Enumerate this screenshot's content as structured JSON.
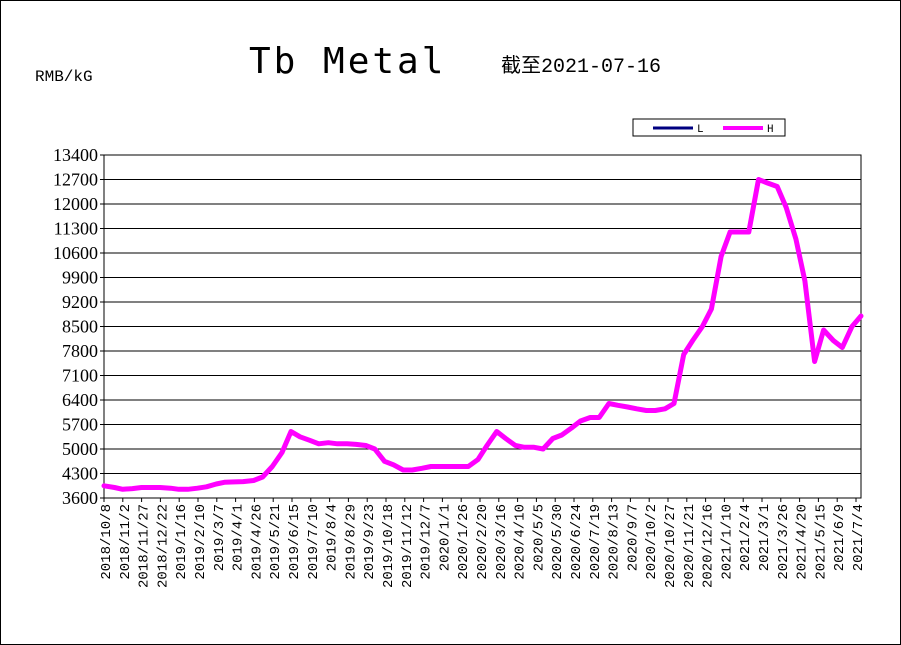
{
  "chart_data": {
    "type": "line",
    "title": "Tb Metal",
    "subtitle": "截至2021-07-16",
    "ylabel": "RMB/kG",
    "xlabel": "",
    "ylim": [
      3600,
      13400
    ],
    "yticks": [
      3600,
      4300,
      5000,
      5700,
      6400,
      7100,
      7800,
      8500,
      9200,
      9900,
      10600,
      11300,
      12000,
      12700,
      13400
    ],
    "grid": true,
    "legend_position": "top-right",
    "xtick_labels": [
      "2018/10/8",
      "2018/11/2",
      "2018/11/27",
      "2018/12/22",
      "2019/1/16",
      "2019/2/10",
      "2019/3/7",
      "2019/4/1",
      "2019/4/26",
      "2019/5/21",
      "2019/6/15",
      "2019/7/10",
      "2019/8/4",
      "2019/8/29",
      "2019/9/23",
      "2019/10/18",
      "2019/11/12",
      "2019/12/7",
      "2020/1/1",
      "2020/1/26",
      "2020/2/20",
      "2020/3/16",
      "2020/4/10",
      "2020/5/5",
      "2020/5/30",
      "2020/6/24",
      "2020/7/19",
      "2020/8/13",
      "2020/9/7",
      "2020/10/2",
      "2020/10/27",
      "2020/11/21",
      "2020/12/16",
      "2021/1/10",
      "2021/2/4",
      "2021/3/1",
      "2021/3/26",
      "2021/4/20",
      "2021/5/15",
      "2021/6/9",
      "2021/7/4"
    ],
    "x": [
      "2018/10/8",
      "2018/10/22",
      "2018/11/2",
      "2018/11/15",
      "2018/11/27",
      "2018/12/10",
      "2018/12/22",
      "2019/1/5",
      "2019/1/16",
      "2019/1/28",
      "2019/2/10",
      "2019/2/22",
      "2019/3/7",
      "2019/3/18",
      "2019/4/1",
      "2019/4/12",
      "2019/4/26",
      "2019/5/8",
      "2019/5/21",
      "2019/6/3",
      "2019/6/15",
      "2019/6/27",
      "2019/7/10",
      "2019/7/22",
      "2019/8/4",
      "2019/8/16",
      "2019/8/29",
      "2019/9/10",
      "2019/9/23",
      "2019/10/5",
      "2019/10/18",
      "2019/10/30",
      "2019/11/12",
      "2019/11/24",
      "2019/12/7",
      "2019/12/19",
      "2020/1/1",
      "2020/1/13",
      "2020/1/26",
      "2020/2/7",
      "2020/2/20",
      "2020/3/3",
      "2020/3/16",
      "2020/3/28",
      "2020/4/10",
      "2020/4/22",
      "2020/5/5",
      "2020/5/17",
      "2020/5/30",
      "2020/6/11",
      "2020/6/24",
      "2020/7/6",
      "2020/7/19",
      "2020/7/31",
      "2020/8/13",
      "2020/8/25",
      "2020/9/7",
      "2020/9/19",
      "2020/10/2",
      "2020/10/14",
      "2020/10/27",
      "2020/11/8",
      "2020/11/21",
      "2020/12/3",
      "2020/12/16",
      "2020/12/28",
      "2021/1/10",
      "2021/1/22",
      "2021/2/4",
      "2021/2/16",
      "2021/3/1",
      "2021/3/13",
      "2021/3/26",
      "2021/4/7",
      "2021/4/20",
      "2021/5/2",
      "2021/5/15",
      "2021/5/27",
      "2021/6/9",
      "2021/6/21",
      "2021/7/4",
      "2021/7/16"
    ],
    "series": [
      {
        "name": "L",
        "color": "#000080",
        "values": [
          3950,
          3900,
          3850,
          3870,
          3900,
          3900,
          3900,
          3880,
          3850,
          3850,
          3880,
          3920,
          4000,
          4050,
          4060,
          4070,
          4100,
          4200,
          4500,
          4900,
          5500,
          5350,
          5250,
          5150,
          5180,
          5150,
          5150,
          5130,
          5100,
          5000,
          4650,
          4550,
          4400,
          4400,
          4450,
          4500,
          4500,
          4500,
          4500,
          4500,
          4700,
          5100,
          5500,
          5300,
          5100,
          5050,
          5050,
          5000,
          5300,
          5400,
          5600,
          5800,
          5900,
          5900,
          6300,
          6250,
          6200,
          6150,
          6100,
          6100,
          6150,
          6300,
          7700,
          8100,
          8500,
          9000,
          10500,
          11200,
          11200,
          11200,
          12700,
          12600,
          12500,
          11900,
          11000,
          9800,
          7500,
          8400,
          8100,
          7900,
          8500,
          8800
        ]
      },
      {
        "name": "H",
        "color": "#ff00ff",
        "values": [
          3950,
          3900,
          3850,
          3870,
          3900,
          3900,
          3900,
          3880,
          3850,
          3850,
          3880,
          3920,
          4000,
          4050,
          4060,
          4070,
          4100,
          4200,
          4500,
          4900,
          5500,
          5350,
          5250,
          5150,
          5180,
          5150,
          5150,
          5130,
          5100,
          5000,
          4650,
          4550,
          4400,
          4400,
          4450,
          4500,
          4500,
          4500,
          4500,
          4500,
          4700,
          5100,
          5500,
          5300,
          5100,
          5050,
          5050,
          5000,
          5300,
          5400,
          5600,
          5800,
          5900,
          5900,
          6300,
          6250,
          6200,
          6150,
          6100,
          6100,
          6150,
          6300,
          7700,
          8100,
          8500,
          9000,
          10500,
          11200,
          11200,
          11200,
          12700,
          12600,
          12500,
          11900,
          11000,
          9800,
          7500,
          8400,
          8100,
          7900,
          8500,
          8800
        ]
      }
    ]
  }
}
